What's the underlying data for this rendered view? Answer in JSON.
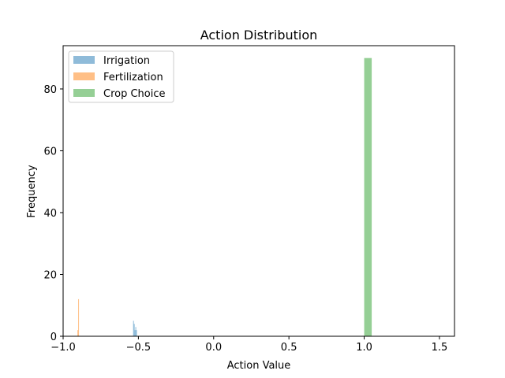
{
  "chart_data": {
    "type": "histogram",
    "title": "Action Distribution",
    "xlabel": "Action Value",
    "ylabel": "Frequency",
    "xlim": [
      -1.0,
      1.6
    ],
    "ylim": [
      0,
      94
    ],
    "xticks": [
      -1.0,
      -0.5,
      0.0,
      0.5,
      1.0,
      1.5
    ],
    "xtick_labels": [
      "−1.0",
      "−0.5",
      "0.0",
      "0.5",
      "1.0",
      "1.5"
    ],
    "yticks": [
      0,
      20,
      40,
      60,
      80
    ],
    "ytick_labels": [
      "0",
      "20",
      "40",
      "60",
      "80"
    ],
    "grid": false,
    "legend_position": "top-left",
    "series": [
      {
        "name": "Irrigation",
        "color": "#1f77b4",
        "bins": [
          {
            "x0": -0.535,
            "x1": -0.53,
            "count": 5
          },
          {
            "x0": -0.53,
            "x1": -0.525,
            "count": 4
          },
          {
            "x0": -0.525,
            "x1": -0.52,
            "count": 2
          },
          {
            "x0": -0.52,
            "x1": -0.515,
            "count": 3
          },
          {
            "x0": -0.515,
            "x1": -0.51,
            "count": 2
          }
        ]
      },
      {
        "name": "Fertilization",
        "color": "#ff7f0e",
        "bins": [
          {
            "x0": -0.905,
            "x1": -0.9,
            "count": 2
          },
          {
            "x0": -0.9,
            "x1": -0.895,
            "count": 12
          }
        ]
      },
      {
        "name": "Crop Choice",
        "color": "#2ca02c",
        "bins": [
          {
            "x0": 1.0,
            "x1": 1.05,
            "count": 90
          }
        ]
      }
    ]
  }
}
